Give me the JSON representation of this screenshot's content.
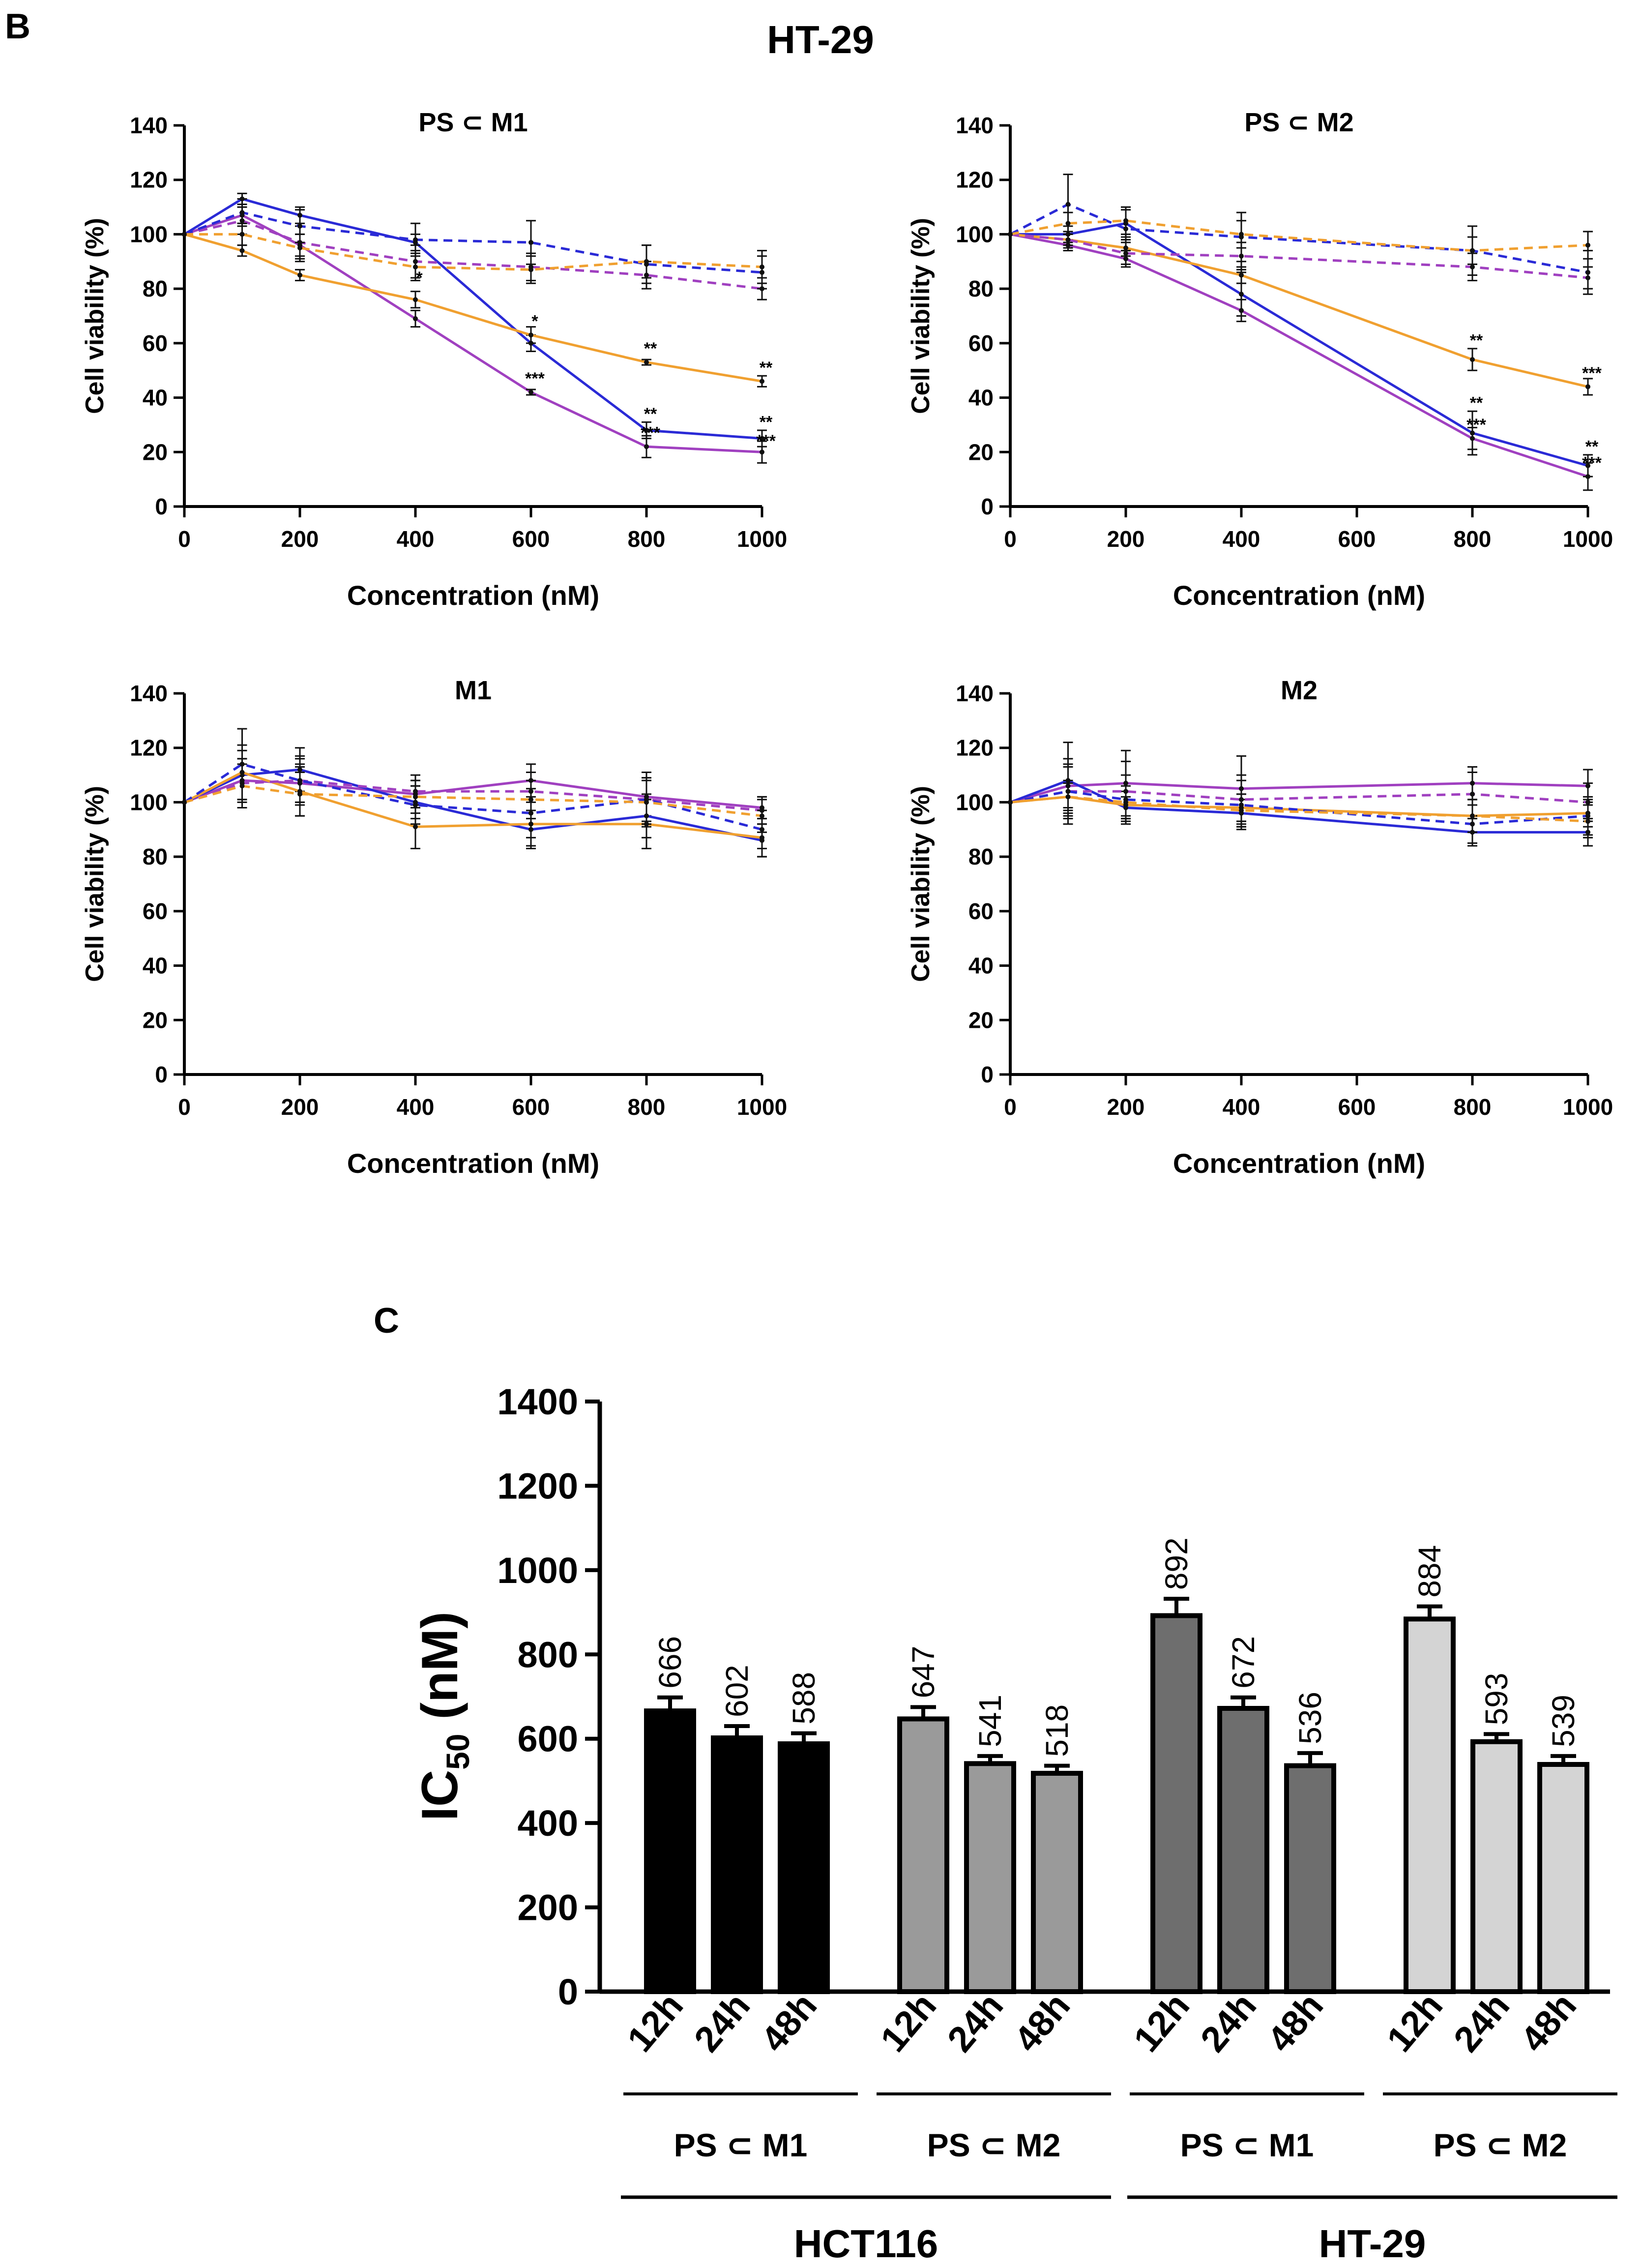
{
  "colors": {
    "purple": "#a040c0",
    "blue": "#2a2ad6",
    "orange": "#f0a030",
    "bar_hct_m1": "#000000",
    "bar_hct_m2": "#9a9a9a",
    "bar_ht_m1": "#6e6e6e",
    "bar_ht_m2": "#d4d4d4"
  },
  "panel_labels": {
    "b": "B",
    "c": "C"
  },
  "figure_title": "HT-29",
  "chart_data": [
    {
      "type": "line",
      "title": "PS ⊂ M1",
      "xlabel": "Concentration (nM)",
      "ylabel": "Cell viability (%)",
      "xlim": [
        0,
        1000
      ],
      "ylim": [
        0,
        140
      ],
      "xticks": [
        0,
        200,
        400,
        600,
        800,
        1000
      ],
      "yticks": [
        0,
        20,
        40,
        60,
        80,
        100,
        120,
        140
      ],
      "x": [
        0,
        100,
        200,
        400,
        600,
        800,
        1000
      ],
      "series": [
        {
          "name": "purple-solid",
          "color": "purple",
          "dashed": false,
          "values": [
            100,
            107,
            96,
            69,
            42,
            22,
            20
          ],
          "err": [
            0,
            3,
            4,
            3,
            1,
            4,
            4
          ]
        },
        {
          "name": "blue-solid",
          "color": "blue",
          "dashed": false,
          "values": [
            100,
            113,
            107,
            97,
            60,
            28,
            25
          ],
          "err": [
            0,
            2,
            3,
            3,
            3,
            3,
            3
          ]
        },
        {
          "name": "orange-solid",
          "color": "orange",
          "dashed": false,
          "values": [
            100,
            94,
            85,
            76,
            63,
            53,
            46
          ],
          "err": [
            0,
            2,
            2,
            3,
            3,
            1,
            2
          ]
        },
        {
          "name": "purple-dashed",
          "color": "purple",
          "dashed": true,
          "values": [
            100,
            105,
            97,
            90,
            88,
            85,
            80
          ],
          "err": [
            0,
            5,
            6,
            6,
            5,
            5,
            4
          ]
        },
        {
          "name": "blue-dashed",
          "color": "blue",
          "dashed": true,
          "values": [
            100,
            108,
            103,
            98,
            97,
            89,
            86
          ],
          "err": [
            0,
            5,
            6,
            6,
            8,
            7,
            6
          ]
        },
        {
          "name": "orange-dashed",
          "color": "orange",
          "dashed": true,
          "values": [
            100,
            100,
            95,
            88,
            87,
            90,
            88
          ],
          "err": [
            0,
            4,
            5,
            5,
            5,
            6,
            6
          ]
        }
      ],
      "annotations": [
        {
          "x": 400,
          "y": 82,
          "text": "*"
        },
        {
          "x": 600,
          "y": 66,
          "text": "*"
        },
        {
          "x": 600,
          "y": 45,
          "text": "***"
        },
        {
          "x": 800,
          "y": 56,
          "text": "**"
        },
        {
          "x": 800,
          "y": 32,
          "text": "**"
        },
        {
          "x": 800,
          "y": 25,
          "text": "***"
        },
        {
          "x": 1000,
          "y": 49,
          "text": "**"
        },
        {
          "x": 1000,
          "y": 29,
          "text": "**"
        },
        {
          "x": 1000,
          "y": 22,
          "text": "***"
        }
      ]
    },
    {
      "type": "line",
      "title": "PS ⊂ M2",
      "xlabel": "Concentration (nM)",
      "ylabel": "Cell viability (%)",
      "xlim": [
        0,
        1000
      ],
      "ylim": [
        0,
        140
      ],
      "xticks": [
        0,
        200,
        400,
        600,
        800,
        1000
      ],
      "yticks": [
        0,
        20,
        40,
        60,
        80,
        100,
        120,
        140
      ],
      "x": [
        0,
        100,
        200,
        400,
        800,
        1000
      ],
      "series": [
        {
          "name": "purple-solid",
          "color": "purple",
          "dashed": false,
          "values": [
            100,
            96,
            91,
            72,
            25,
            11
          ],
          "err": [
            0,
            2,
            3,
            4,
            4,
            5
          ]
        },
        {
          "name": "blue-solid",
          "color": "blue",
          "dashed": false,
          "values": [
            100,
            100,
            104,
            78,
            27,
            15
          ],
          "err": [
            0,
            3,
            5,
            8,
            8,
            4
          ]
        },
        {
          "name": "orange-solid",
          "color": "orange",
          "dashed": false,
          "values": [
            100,
            98,
            95,
            85,
            54,
            44
          ],
          "err": [
            0,
            2,
            3,
            3,
            4,
            3
          ]
        },
        {
          "name": "purple-dashed",
          "color": "purple",
          "dashed": true,
          "values": [
            100,
            98,
            93,
            92,
            88,
            84
          ],
          "err": [
            0,
            3,
            4,
            5,
            5,
            4
          ]
        },
        {
          "name": "blue-dashed",
          "color": "blue",
          "dashed": true,
          "values": [
            100,
            111,
            102,
            99,
            94,
            86
          ],
          "err": [
            0,
            11,
            8,
            9,
            9,
            8
          ]
        },
        {
          "name": "orange-dashed",
          "color": "orange",
          "dashed": true,
          "values": [
            100,
            104,
            105,
            100,
            94,
            96
          ],
          "err": [
            0,
            4,
            5,
            5,
            5,
            5
          ]
        }
      ],
      "annotations": [
        {
          "x": 800,
          "y": 59,
          "text": "**"
        },
        {
          "x": 800,
          "y": 36,
          "text": "**"
        },
        {
          "x": 800,
          "y": 28,
          "text": "***"
        },
        {
          "x": 1000,
          "y": 47,
          "text": "***"
        },
        {
          "x": 1000,
          "y": 20,
          "text": "**"
        },
        {
          "x": 1000,
          "y": 14,
          "text": "***"
        }
      ]
    },
    {
      "type": "line",
      "title": "M1",
      "xlabel": "Concentration (nM)",
      "ylabel": "Cell viability (%)",
      "xlim": [
        0,
        1000
      ],
      "ylim": [
        0,
        140
      ],
      "xticks": [
        0,
        200,
        400,
        600,
        800,
        1000
      ],
      "yticks": [
        0,
        20,
        40,
        60,
        80,
        100,
        120,
        140
      ],
      "x": [
        0,
        100,
        200,
        400,
        600,
        800,
        1000
      ],
      "series": [
        {
          "name": "purple-solid",
          "color": "purple",
          "dashed": false,
          "values": [
            100,
            108,
            107,
            103,
            108,
            102,
            98
          ],
          "err": [
            0,
            8,
            7,
            5,
            6,
            7,
            4
          ]
        },
        {
          "name": "blue-solid",
          "color": "blue",
          "dashed": false,
          "values": [
            100,
            110,
            112,
            100,
            90,
            95,
            86
          ],
          "err": [
            0,
            9,
            8,
            6,
            7,
            8,
            6
          ]
        },
        {
          "name": "orange-solid",
          "color": "orange",
          "dashed": false,
          "values": [
            100,
            111,
            104,
            91,
            92,
            92,
            87
          ],
          "err": [
            0,
            10,
            9,
            8,
            8,
            9,
            7
          ]
        },
        {
          "name": "purple-dashed",
          "color": "purple",
          "dashed": true,
          "values": [
            100,
            107,
            108,
            104,
            104,
            101,
            97
          ],
          "err": [
            0,
            9,
            8,
            6,
            7,
            8,
            5
          ]
        },
        {
          "name": "blue-dashed",
          "color": "blue",
          "dashed": true,
          "values": [
            100,
            114,
            108,
            99,
            96,
            101,
            90
          ],
          "err": [
            0,
            13,
            9,
            7,
            9,
            10,
            7
          ]
        },
        {
          "name": "orange-dashed",
          "color": "orange",
          "dashed": true,
          "values": [
            100,
            106,
            103,
            102,
            101,
            100,
            95
          ],
          "err": [
            0,
            8,
            8,
            6,
            7,
            8,
            6
          ]
        }
      ]
    },
    {
      "type": "line",
      "title": "M2",
      "xlabel": "Concentration (nM)",
      "ylabel": "Cell viability (%)",
      "xlim": [
        0,
        1000
      ],
      "ylim": [
        0,
        140
      ],
      "xticks": [
        0,
        200,
        400,
        600,
        800,
        1000
      ],
      "yticks": [
        0,
        20,
        40,
        60,
        80,
        100,
        120,
        140
      ],
      "x": [
        0,
        100,
        200,
        400,
        800,
        1000
      ],
      "series": [
        {
          "name": "purple-solid",
          "color": "purple",
          "dashed": false,
          "values": [
            100,
            106,
            107,
            105,
            107,
            106
          ],
          "err": [
            0,
            8,
            12,
            12,
            6,
            6
          ]
        },
        {
          "name": "blue-solid",
          "color": "blue",
          "dashed": false,
          "values": [
            100,
            108,
            98,
            96,
            89,
            89
          ],
          "err": [
            0,
            14,
            4,
            5,
            5,
            5
          ]
        },
        {
          "name": "orange-solid",
          "color": "orange",
          "dashed": false,
          "values": [
            100,
            102,
            99,
            98,
            95,
            96
          ],
          "err": [
            0,
            5,
            5,
            5,
            6,
            5
          ]
        },
        {
          "name": "purple-dashed",
          "color": "purple",
          "dashed": true,
          "values": [
            100,
            104,
            104,
            101,
            103,
            100
          ],
          "err": [
            0,
            9,
            11,
            9,
            8,
            7
          ]
        },
        {
          "name": "blue-dashed",
          "color": "blue",
          "dashed": true,
          "values": [
            100,
            104,
            101,
            99,
            92,
            95
          ],
          "err": [
            0,
            12,
            9,
            9,
            7,
            7
          ]
        },
        {
          "name": "orange-dashed",
          "color": "orange",
          "dashed": true,
          "values": [
            100,
            102,
            100,
            97,
            95,
            93
          ],
          "err": [
            0,
            6,
            6,
            6,
            6,
            6
          ]
        }
      ]
    },
    {
      "type": "bar",
      "title": "",
      "ylabel": "IC",
      "ylabel_sub": "50",
      "ylabel_unit": " (nM)",
      "ylim": [
        0,
        1400
      ],
      "yticks": [
        0,
        200,
        400,
        600,
        800,
        1000,
        1200,
        1400
      ],
      "categories": [
        "12h",
        "24h",
        "48h",
        "12h",
        "24h",
        "48h",
        "12h",
        "24h",
        "48h",
        "12h",
        "24h",
        "48h"
      ],
      "values": [
        666,
        602,
        588,
        647,
        541,
        518,
        892,
        672,
        536,
        884,
        593,
        539
      ],
      "err": [
        32,
        28,
        25,
        28,
        18,
        18,
        40,
        26,
        30,
        30,
        18,
        20
      ],
      "data_labels": [
        "666",
        "602",
        "588",
        "647",
        "541",
        "518",
        "892",
        "672",
        "536",
        "884",
        "593",
        "539"
      ],
      "group_colors": [
        "bar_hct_m1",
        "bar_hct_m2",
        "bar_ht_m1",
        "bar_ht_m2"
      ],
      "groups": [
        "PS ⊂ M1",
        "PS ⊂ M2",
        "PS ⊂ M1",
        "PS ⊂ M2"
      ],
      "cell_lines": [
        "HCT116",
        "HT-29"
      ]
    }
  ]
}
